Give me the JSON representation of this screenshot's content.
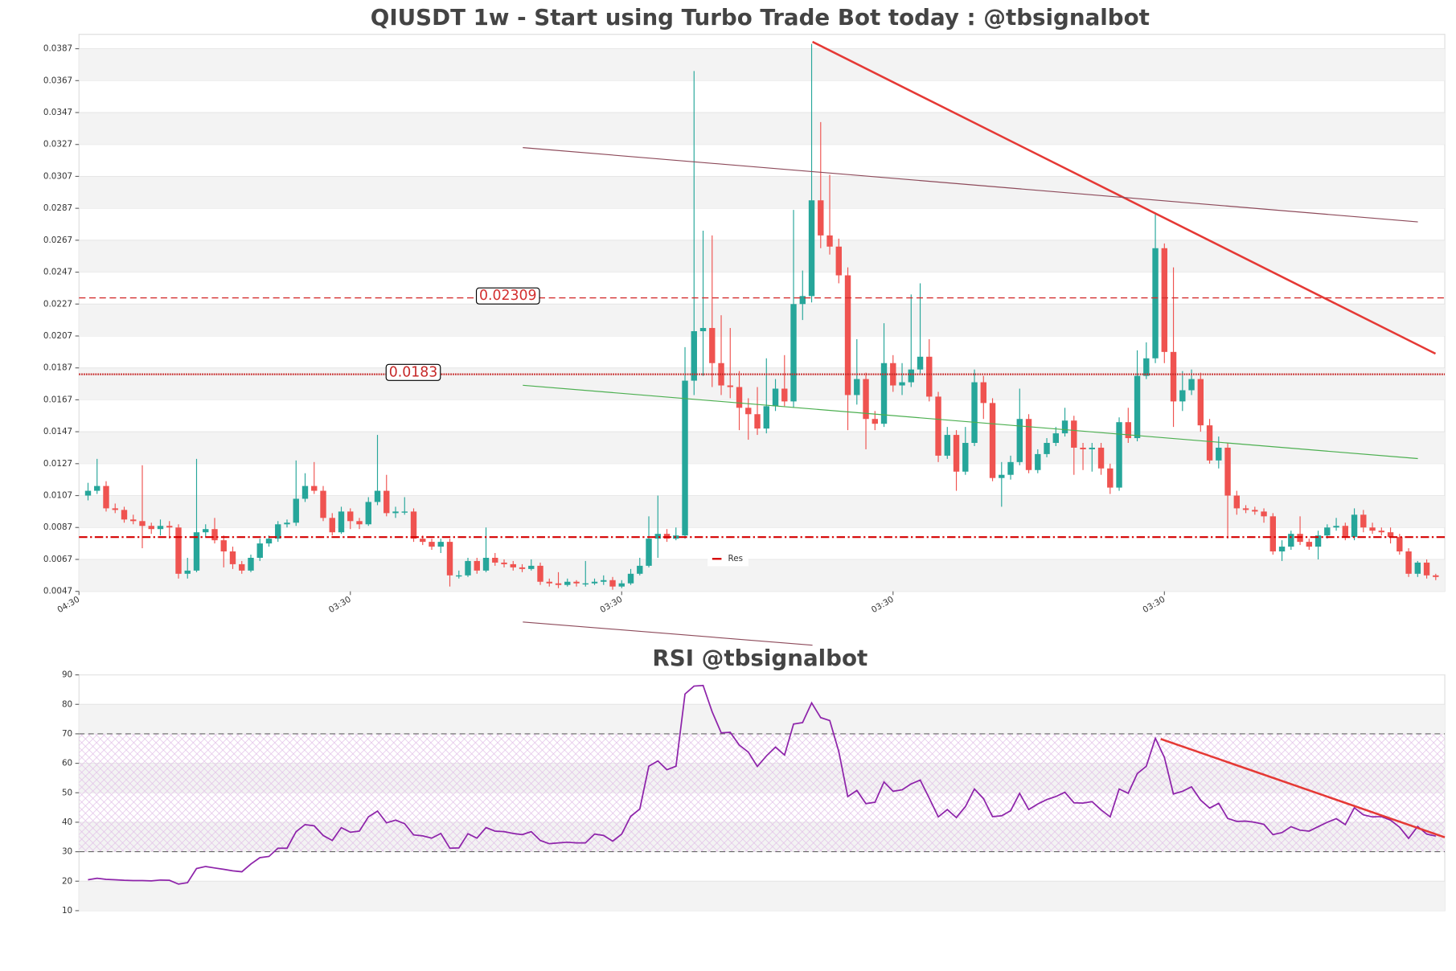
{
  "chart_data": [
    {
      "type": "candlestick",
      "title": "QIUSDT 1w - Start using Turbo Trade Bot today : @tbsignalbot",
      "up_color": "#26a69a",
      "down_color": "#ef5350",
      "open": [
        0.0107,
        0.011,
        0.0113,
        0.0099,
        0.0098,
        0.0092,
        0.0091,
        0.0088,
        0.0086,
        0.0088,
        0.0087,
        0.0058,
        0.006,
        0.0084,
        0.0086,
        0.0079,
        0.0072,
        0.0064,
        0.006,
        0.0068,
        0.0077,
        0.008,
        0.0089,
        0.009,
        0.0105,
        0.0113,
        0.011,
        0.0093,
        0.0084,
        0.0097,
        0.0091,
        0.0089,
        0.0103,
        0.011,
        0.0096,
        0.0097,
        0.0097,
        0.008,
        0.0078,
        0.0075,
        0.0078,
        0.0057,
        0.0057,
        0.0066,
        0.006,
        0.0068,
        0.0065,
        0.0064,
        0.0062,
        0.0061,
        0.0063,
        0.0053,
        0.0052,
        0.0051,
        0.0053,
        0.0052,
        0.0052,
        0.0053,
        0.0054,
        0.005,
        0.0052,
        0.0058,
        0.0063,
        0.008,
        0.0083,
        0.008,
        0.0082,
        0.0179,
        0.021,
        0.0212,
        0.019,
        0.0176,
        0.0175,
        0.0162,
        0.0158,
        0.0149,
        0.0163,
        0.0174,
        0.0166,
        0.0227,
        0.0232,
        0.0292,
        0.027,
        0.0263,
        0.0245,
        0.017,
        0.018,
        0.0155,
        0.0152,
        0.019,
        0.0176,
        0.0178,
        0.0186,
        0.0194,
        0.0169,
        0.0132,
        0.0145,
        0.0122,
        0.014,
        0.0178,
        0.0165,
        0.0118,
        0.012,
        0.0128,
        0.0155,
        0.0123,
        0.0133,
        0.014,
        0.0146,
        0.0154,
        0.0137,
        0.0136,
        0.0137,
        0.0124,
        0.0112,
        0.0153,
        0.0143,
        0.0182,
        0.0193,
        0.0262,
        0.0197,
        0.0166,
        0.0173,
        0.018,
        0.0151,
        0.0129,
        0.0137,
        0.0107,
        0.0099,
        0.0098,
        0.0097,
        0.0094,
        0.0072,
        0.0075,
        0.0083,
        0.0078,
        0.0075,
        0.0082,
        0.0087,
        0.0088,
        0.0081,
        0.0095,
        0.0087,
        0.0085,
        0.0084,
        0.0081,
        0.0072,
        0.0058,
        0.0065,
        0.0057
      ],
      "high": [
        0.0115,
        0.013,
        0.0116,
        0.0102,
        0.01,
        0.0095,
        0.0126,
        0.009,
        0.0092,
        0.0091,
        0.0089,
        0.0068,
        0.013,
        0.0089,
        0.0093,
        0.0082,
        0.0075,
        0.0066,
        0.007,
        0.008,
        0.0082,
        0.0091,
        0.0092,
        0.0129,
        0.0121,
        0.0128,
        0.0113,
        0.0096,
        0.01,
        0.0099,
        0.0093,
        0.0106,
        0.0145,
        0.012,
        0.01,
        0.0106,
        0.0099,
        0.0082,
        0.008,
        0.008,
        0.008,
        0.006,
        0.0068,
        0.0068,
        0.0087,
        0.0071,
        0.0067,
        0.0066,
        0.0064,
        0.0067,
        0.0065,
        0.0055,
        0.0059,
        0.0055,
        0.0054,
        0.0066,
        0.0055,
        0.0057,
        0.0056,
        0.0054,
        0.0061,
        0.0068,
        0.0094,
        0.0107,
        0.0086,
        0.0087,
        0.02,
        0.0373,
        0.0273,
        0.027,
        0.022,
        0.0212,
        0.0185,
        0.0168,
        0.0175,
        0.0193,
        0.018,
        0.0195,
        0.0286,
        0.0248,
        0.039,
        0.0341,
        0.0308,
        0.0268,
        0.025,
        0.0205,
        0.0184,
        0.016,
        0.0215,
        0.0195,
        0.019,
        0.0233,
        0.024,
        0.0205,
        0.0172,
        0.015,
        0.0148,
        0.015,
        0.0186,
        0.0182,
        0.0168,
        0.0128,
        0.0132,
        0.0174,
        0.0158,
        0.0136,
        0.0143,
        0.015,
        0.0162,
        0.0157,
        0.014,
        0.014,
        0.014,
        0.0127,
        0.0156,
        0.0162,
        0.0198,
        0.0203,
        0.0284,
        0.0265,
        0.025,
        0.0185,
        0.0186,
        0.0184,
        0.0155,
        0.0144,
        0.014,
        0.011,
        0.0101,
        0.01,
        0.0099,
        0.0096,
        0.0079,
        0.0085,
        0.0094,
        0.008,
        0.0085,
        0.0089,
        0.0093,
        0.009,
        0.0099,
        0.0098,
        0.009,
        0.0087,
        0.0087,
        0.0083,
        0.0074,
        0.0066,
        0.0067,
        0.0058
      ],
      "low": [
        0.0104,
        0.0108,
        0.0097,
        0.0096,
        0.009,
        0.0089,
        0.0074,
        0.0083,
        0.0082,
        0.008,
        0.0055,
        0.0055,
        0.0059,
        0.0081,
        0.0077,
        0.0062,
        0.0061,
        0.0058,
        0.0059,
        0.0066,
        0.0075,
        0.0078,
        0.0087,
        0.0088,
        0.0103,
        0.0108,
        0.0091,
        0.0082,
        0.0083,
        0.0086,
        0.0086,
        0.0088,
        0.0101,
        0.0094,
        0.0093,
        0.0095,
        0.0078,
        0.0076,
        0.0073,
        0.0071,
        0.005,
        0.0055,
        0.0056,
        0.0058,
        0.0059,
        0.0063,
        0.0062,
        0.006,
        0.0059,
        0.006,
        0.0051,
        0.005,
        0.0049,
        0.005,
        0.005,
        0.005,
        0.0051,
        0.0051,
        0.0048,
        0.0049,
        0.0051,
        0.0057,
        0.0062,
        0.0068,
        0.0078,
        0.0079,
        0.008,
        0.017,
        0.0182,
        0.0175,
        0.017,
        0.0168,
        0.0148,
        0.0142,
        0.0145,
        0.0146,
        0.016,
        0.0163,
        0.0162,
        0.0217,
        0.0228,
        0.0262,
        0.0258,
        0.024,
        0.0148,
        0.0164,
        0.0136,
        0.0148,
        0.015,
        0.0172,
        0.017,
        0.0175,
        0.0183,
        0.0166,
        0.0128,
        0.013,
        0.011,
        0.012,
        0.0138,
        0.0155,
        0.0116,
        0.01,
        0.0117,
        0.0126,
        0.0121,
        0.0121,
        0.0131,
        0.0138,
        0.0144,
        0.012,
        0.0123,
        0.0122,
        0.012,
        0.0108,
        0.011,
        0.014,
        0.0141,
        0.018,
        0.019,
        0.019,
        0.015,
        0.016,
        0.017,
        0.0147,
        0.0127,
        0.0124,
        0.008,
        0.0095,
        0.0096,
        0.0095,
        0.009,
        0.007,
        0.0066,
        0.0073,
        0.0076,
        0.0073,
        0.0067,
        0.008,
        0.0085,
        0.0079,
        0.0079,
        0.0084,
        0.0083,
        0.0082,
        0.0077,
        0.007,
        0.0056,
        0.0056,
        0.0055,
        0.0054
      ],
      "close": [
        0.011,
        0.0113,
        0.0099,
        0.0098,
        0.0092,
        0.0091,
        0.0088,
        0.0086,
        0.0088,
        0.0087,
        0.0058,
        0.006,
        0.0084,
        0.0086,
        0.0079,
        0.0072,
        0.0064,
        0.006,
        0.0068,
        0.0077,
        0.008,
        0.0089,
        0.009,
        0.0105,
        0.0113,
        0.011,
        0.0093,
        0.0084,
        0.0097,
        0.0091,
        0.0089,
        0.0103,
        0.011,
        0.0096,
        0.0097,
        0.0097,
        0.008,
        0.0078,
        0.0075,
        0.0078,
        0.0057,
        0.0057,
        0.0066,
        0.006,
        0.0068,
        0.0065,
        0.0064,
        0.0062,
        0.0061,
        0.0063,
        0.0053,
        0.0052,
        0.0051,
        0.0053,
        0.0052,
        0.0052,
        0.0053,
        0.0054,
        0.005,
        0.0052,
        0.0058,
        0.0063,
        0.008,
        0.0083,
        0.008,
        0.0082,
        0.0179,
        0.021,
        0.0212,
        0.019,
        0.0176,
        0.0175,
        0.0162,
        0.0158,
        0.0149,
        0.0163,
        0.0174,
        0.0166,
        0.0227,
        0.0232,
        0.0292,
        0.027,
        0.0263,
        0.0245,
        0.017,
        0.018,
        0.0155,
        0.0152,
        0.019,
        0.0176,
        0.0178,
        0.0186,
        0.0194,
        0.0169,
        0.0132,
        0.0145,
        0.0122,
        0.014,
        0.0178,
        0.0165,
        0.0118,
        0.012,
        0.0128,
        0.0155,
        0.0123,
        0.0133,
        0.014,
        0.0146,
        0.0154,
        0.0137,
        0.0136,
        0.0137,
        0.0124,
        0.0112,
        0.0153,
        0.0143,
        0.0182,
        0.0193,
        0.0262,
        0.0197,
        0.0166,
        0.0173,
        0.018,
        0.0151,
        0.0129,
        0.0137,
        0.0107,
        0.0099,
        0.0098,
        0.0097,
        0.0094,
        0.0072,
        0.0075,
        0.0083,
        0.0078,
        0.0075,
        0.0082,
        0.0087,
        0.0088,
        0.0081,
        0.0095,
        0.0087,
        0.0085,
        0.0084,
        0.0081,
        0.0072,
        0.0058,
        0.0065,
        0.0057,
        0.0056
      ],
      "xlim": [
        -1,
        150
      ],
      "xticks": [
        {
          "value": -1,
          "label": "04:30"
        },
        {
          "value": 29,
          "label": "03:30"
        },
        {
          "value": 59,
          "label": "03:30"
        },
        {
          "value": 89,
          "label": "03:30"
        },
        {
          "value": 119,
          "label": "03:30"
        }
      ],
      "ylim": [
        0.0047,
        0.0396
      ],
      "yticks": [
        0.0047,
        0.0067,
        0.0087,
        0.0107,
        0.0127,
        0.0147,
        0.0167,
        0.0187,
        0.0207,
        0.0227,
        0.0247,
        0.0267,
        0.0287,
        0.0307,
        0.0327,
        0.0347,
        0.0367,
        0.0387
      ],
      "grid": true,
      "levels": [
        {
          "value": 0.02309,
          "color": "#d32f2f",
          "style": "dashed"
        },
        {
          "value": 0.0183,
          "color": "#c62828",
          "style": "dotted"
        }
      ],
      "resistance": {
        "name": "Res",
        "value": 0.0081,
        "color": "#d50000"
      }
    },
    {
      "type": "line",
      "title": "RSI @tbsignalbot",
      "color": "#8e24aa",
      "values": [
        20.5,
        21,
        20.6,
        20.5,
        20.3,
        20.2,
        20.2,
        20.1,
        20.4,
        20.3,
        19.0,
        19.5,
        24.3,
        25.0,
        24.5,
        24.0,
        23.5,
        23.2,
        25.8,
        28.0,
        28.4,
        31.2,
        31.2,
        36.8,
        39.2,
        38.8,
        35.5,
        33.8,
        38.2,
        36.6,
        37.0,
        41.8,
        43.8,
        39.8,
        40.7,
        39.5,
        35.7,
        35.4,
        34.6,
        36.2,
        31.2,
        31.3,
        36.1,
        34.6,
        38.2,
        37.0,
        36.8,
        36.2,
        35.8,
        36.8,
        33.8,
        32.7,
        33.0,
        33.2,
        33.0,
        33.0,
        36.0,
        35.5,
        33.6,
        36.0,
        42.0,
        44.5,
        59.0,
        60.8,
        57.8,
        59.0,
        83.5,
        86.2,
        86.4,
        77.5,
        70.3,
        70.5,
        66.2,
        63.8,
        58.9,
        62.5,
        65.5,
        62.8,
        73.3,
        73.8,
        80.5,
        75.5,
        74.5,
        64.0,
        48.7,
        50.8,
        46.3,
        46.8,
        53.7,
        50.5,
        51.0,
        53.0,
        54.3,
        48.2,
        41.8,
        44.3,
        41.6,
        45.3,
        51.3,
        48.0,
        41.9,
        42.2,
        43.9,
        49.8,
        44.3,
        46.2,
        47.7,
        48.7,
        50.2,
        46.6,
        46.5,
        47.0,
        44.2,
        41.8,
        51.3,
        49.8,
        56.5,
        59.0,
        68.5,
        62.0,
        49.6,
        50.5,
        52.0,
        47.5,
        44.8,
        46.4,
        41.3,
        40.3,
        40.4,
        40.0,
        39.3,
        35.8,
        36.5,
        38.5,
        37.3,
        37.0,
        38.5,
        40.0,
        41.2,
        39.2,
        44.9,
        42.5,
        41.8,
        41.9,
        40.7,
        38.3,
        34.5,
        38.6,
        36.0,
        35.3
      ],
      "xlim": [
        -1,
        150
      ],
      "ylim": [
        10,
        90
      ],
      "yticks": [
        10,
        20,
        30,
        40,
        50,
        60,
        70,
        80,
        90
      ],
      "grid": true,
      "overbought": 70,
      "oversold": 30
    }
  ]
}
